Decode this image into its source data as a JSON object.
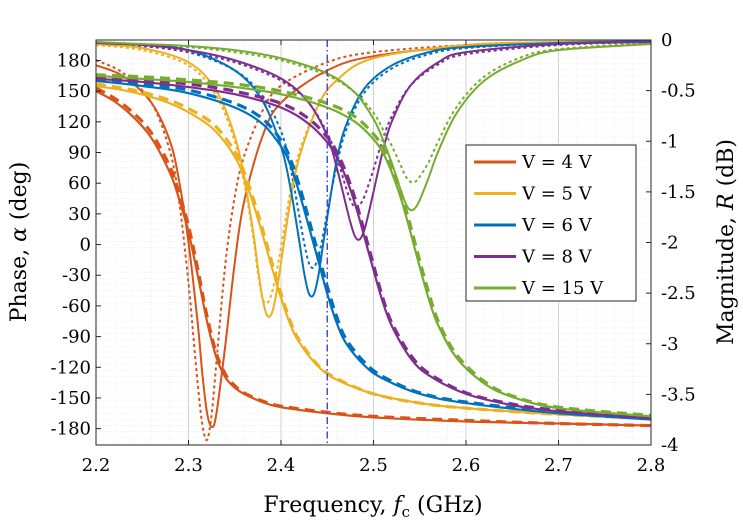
{
  "chart_data": {
    "type": "line",
    "title": "",
    "xlabel": "Frequency, f_c (GHz)",
    "xlabel_parts": {
      "pre": "Frequency, ",
      "var": "f",
      "sub": "c",
      "post": " (GHz)"
    },
    "ylabel_left": "Phase, α (deg)",
    "ylabel_left_parts": {
      "pre": "Phase, ",
      "var": "α",
      "post": " (deg)"
    },
    "ylabel_right": "Magnitude, R (dB)",
    "ylabel_right_parts": {
      "pre": "Magnitude, ",
      "var": "R",
      "post": " (dB)"
    },
    "xlim": [
      2.2,
      2.8
    ],
    "ylim_left": [
      -196,
      200
    ],
    "ylim_right": [
      -4,
      0
    ],
    "x_ticks": [
      "2.2",
      "2.3",
      "2.4",
      "2.5",
      "2.6",
      "2.7",
      "2.8"
    ],
    "y_left_ticks": [
      "180",
      "150",
      "120",
      "90",
      "60",
      "30",
      "0",
      "-30",
      "-60",
      "-90",
      "-120",
      "-150",
      "-180"
    ],
    "y_right_ticks": [
      "0",
      "-0.5",
      "-1",
      "-1.5",
      "-2",
      "-2.5",
      "-3",
      "-3.5",
      "-4"
    ],
    "grid": true,
    "minor_grid": true,
    "reference_line": {
      "x": 2.45,
      "style": "dash-dot",
      "color": "#4040e0"
    },
    "legend_position": "right-center",
    "line_styles": {
      "phase_measured": "solid thin",
      "phase_simulated": "dashed thick",
      "magnitude_measured": "solid thin",
      "magnitude_simulated": "dotted thin"
    },
    "series": [
      {
        "name": "V = 4 V",
        "color": "#d95319",
        "f0": 2.327,
        "phase_measured": {
          "x": [
            2.2,
            2.22,
            2.24,
            2.26,
            2.28,
            2.29,
            2.3,
            2.31,
            2.32,
            2.33,
            2.34,
            2.35,
            2.36,
            2.38,
            2.4,
            2.45,
            2.5,
            2.6,
            2.7,
            2.8
          ],
          "y": [
            150,
            140,
            125,
            104,
            70,
            44,
            12,
            -30,
            -75,
            -110,
            -130,
            -140,
            -146,
            -154,
            -159,
            -165,
            -169,
            -173,
            -175,
            -177
          ]
        },
        "phase_simulated": {
          "x": [
            2.2,
            2.22,
            2.24,
            2.26,
            2.28,
            2.29,
            2.3,
            2.31,
            2.32,
            2.33,
            2.34,
            2.35,
            2.36,
            2.38,
            2.4,
            2.45,
            2.5,
            2.6,
            2.7,
            2.8
          ],
          "y": [
            153,
            143,
            129,
            109,
            76,
            50,
            18,
            -24,
            -70,
            -106,
            -127,
            -138,
            -145,
            -153,
            -158,
            -164,
            -168,
            -172,
            -175,
            -177
          ]
        },
        "magnitude_measured": {
          "x": [
            2.2,
            2.23,
            2.26,
            2.28,
            2.29,
            2.3,
            2.31,
            2.315,
            2.32,
            2.325,
            2.33,
            2.34,
            2.35,
            2.36,
            2.38,
            2.4,
            2.45,
            2.5,
            2.6,
            2.7,
            2.8
          ],
          "y": [
            -0.25,
            -0.36,
            -0.62,
            -1.0,
            -1.4,
            -2.0,
            -2.8,
            -3.3,
            -3.68,
            -3.82,
            -3.7,
            -3.0,
            -2.2,
            -1.6,
            -0.95,
            -0.62,
            -0.3,
            -0.16,
            -0.06,
            -0.03,
            -0.02
          ]
        },
        "magnitude_simulated": {
          "x": [
            2.2,
            2.23,
            2.26,
            2.28,
            2.29,
            2.3,
            2.305,
            2.31,
            2.315,
            2.32,
            2.325,
            2.33,
            2.34,
            2.35,
            2.36,
            2.38,
            2.4,
            2.45,
            2.5,
            2.6,
            2.7,
            2.8
          ],
          "y": [
            -0.2,
            -0.33,
            -0.62,
            -1.1,
            -1.6,
            -2.4,
            -2.9,
            -3.4,
            -3.8,
            -3.95,
            -3.7,
            -3.2,
            -2.2,
            -1.55,
            -1.15,
            -0.7,
            -0.45,
            -0.22,
            -0.12,
            -0.05,
            -0.03,
            -0.02
          ]
        }
      },
      {
        "name": "V = 5 V",
        "color": "#edb120",
        "f0": 2.385,
        "phase_measured": {
          "x": [
            2.2,
            2.24,
            2.28,
            2.31,
            2.33,
            2.35,
            2.36,
            2.37,
            2.38,
            2.39,
            2.4,
            2.41,
            2.42,
            2.44,
            2.46,
            2.5,
            2.55,
            2.6,
            2.7,
            2.8
          ],
          "y": [
            155,
            149,
            138,
            124,
            110,
            86,
            66,
            40,
            10,
            -22,
            -52,
            -78,
            -96,
            -119,
            -132,
            -146,
            -155,
            -160,
            -166,
            -170
          ]
        },
        "phase_simulated": {
          "x": [
            2.2,
            2.24,
            2.28,
            2.31,
            2.33,
            2.35,
            2.36,
            2.37,
            2.38,
            2.39,
            2.4,
            2.41,
            2.42,
            2.44,
            2.46,
            2.5,
            2.55,
            2.6,
            2.7,
            2.8
          ],
          "y": [
            157,
            151,
            141,
            128,
            115,
            91,
            71,
            45,
            15,
            -17,
            -48,
            -75,
            -94,
            -118,
            -131,
            -146,
            -155,
            -160,
            -166,
            -170
          ]
        },
        "magnitude_measured": {
          "x": [
            2.2,
            2.25,
            2.3,
            2.33,
            2.35,
            2.36,
            2.37,
            2.375,
            2.38,
            2.385,
            2.39,
            2.395,
            2.4,
            2.41,
            2.42,
            2.44,
            2.46,
            2.5,
            2.6,
            2.7,
            2.8
          ],
          "y": [
            -0.04,
            -0.08,
            -0.22,
            -0.5,
            -0.95,
            -1.35,
            -1.9,
            -2.25,
            -2.55,
            -2.72,
            -2.7,
            -2.5,
            -2.2,
            -1.6,
            -1.15,
            -0.65,
            -0.4,
            -0.18,
            -0.05,
            -0.02,
            -0.01
          ]
        },
        "magnitude_simulated": {
          "x": [
            2.2,
            2.25,
            2.3,
            2.33,
            2.35,
            2.36,
            2.37,
            2.375,
            2.38,
            2.385,
            2.39,
            2.395,
            2.4,
            2.41,
            2.42,
            2.44,
            2.46,
            2.5,
            2.6,
            2.7,
            2.8
          ],
          "y": [
            -0.05,
            -0.1,
            -0.25,
            -0.55,
            -1.0,
            -1.4,
            -1.95,
            -2.3,
            -2.55,
            -2.6,
            -2.5,
            -2.3,
            -2.05,
            -1.5,
            -1.1,
            -0.65,
            -0.4,
            -0.18,
            -0.05,
            -0.02,
            -0.01
          ]
        }
      },
      {
        "name": "V = 6 V",
        "color": "#0072bd",
        "f0": 2.433,
        "phase_measured": {
          "x": [
            2.2,
            2.25,
            2.3,
            2.35,
            2.38,
            2.4,
            2.41,
            2.42,
            2.43,
            2.44,
            2.45,
            2.46,
            2.47,
            2.49,
            2.51,
            2.55,
            2.6,
            2.7,
            2.8
          ],
          "y": [
            160,
            155,
            148,
            134,
            118,
            96,
            78,
            50,
            18,
            -15,
            -48,
            -76,
            -96,
            -118,
            -131,
            -146,
            -155,
            -165,
            -171
          ]
        },
        "phase_simulated": {
          "x": [
            2.2,
            2.25,
            2.3,
            2.35,
            2.38,
            2.4,
            2.41,
            2.42,
            2.43,
            2.44,
            2.45,
            2.46,
            2.47,
            2.49,
            2.51,
            2.55,
            2.6,
            2.7,
            2.8
          ],
          "y": [
            162,
            157,
            151,
            138,
            123,
            102,
            84,
            57,
            25,
            -8,
            -41,
            -70,
            -92,
            -115,
            -129,
            -145,
            -154,
            -164,
            -170
          ]
        },
        "magnitude_measured": {
          "x": [
            2.2,
            2.25,
            2.3,
            2.35,
            2.38,
            2.4,
            2.41,
            2.42,
            2.425,
            2.43,
            2.435,
            2.44,
            2.445,
            2.45,
            2.46,
            2.47,
            2.49,
            2.52,
            2.56,
            2.6,
            2.7,
            2.8
          ],
          "y": [
            -0.02,
            -0.05,
            -0.1,
            -0.3,
            -0.6,
            -1.05,
            -1.45,
            -2.0,
            -2.3,
            -2.5,
            -2.52,
            -2.35,
            -2.05,
            -1.75,
            -1.2,
            -0.85,
            -0.48,
            -0.25,
            -0.12,
            -0.07,
            -0.03,
            -0.01
          ]
        },
        "magnitude_simulated": {
          "x": [
            2.2,
            2.25,
            2.3,
            2.35,
            2.38,
            2.4,
            2.41,
            2.42,
            2.425,
            2.43,
            2.435,
            2.44,
            2.445,
            2.45,
            2.46,
            2.47,
            2.49,
            2.52,
            2.56,
            2.6,
            2.7,
            2.8
          ],
          "y": [
            -0.03,
            -0.06,
            -0.12,
            -0.3,
            -0.55,
            -0.9,
            -1.25,
            -1.75,
            -2.0,
            -2.2,
            -2.25,
            -2.15,
            -1.95,
            -1.7,
            -1.25,
            -0.9,
            -0.52,
            -0.28,
            -0.14,
            -0.08,
            -0.03,
            -0.02
          ]
        }
      },
      {
        "name": "V = 8 V",
        "color": "#7e2f8e",
        "f0": 2.485,
        "phase_measured": {
          "x": [
            2.2,
            2.25,
            2.3,
            2.35,
            2.4,
            2.43,
            2.45,
            2.46,
            2.47,
            2.48,
            2.49,
            2.5,
            2.51,
            2.52,
            2.54,
            2.56,
            2.6,
            2.65,
            2.7,
            2.8
          ],
          "y": [
            162,
            159,
            154,
            147,
            134,
            118,
            100,
            86,
            66,
            40,
            8,
            -25,
            -56,
            -80,
            -111,
            -128,
            -146,
            -157,
            -163,
            -170
          ]
        },
        "phase_simulated": {
          "x": [
            2.2,
            2.25,
            2.3,
            2.35,
            2.4,
            2.43,
            2.45,
            2.46,
            2.47,
            2.48,
            2.49,
            2.5,
            2.51,
            2.52,
            2.54,
            2.56,
            2.6,
            2.65,
            2.7,
            2.8
          ],
          "y": [
            164,
            161,
            157,
            150,
            138,
            123,
            105,
            91,
            71,
            45,
            13,
            -20,
            -52,
            -77,
            -108,
            -126,
            -145,
            -156,
            -162,
            -169
          ]
        },
        "magnitude_measured": {
          "x": [
            2.2,
            2.25,
            2.3,
            2.35,
            2.4,
            2.43,
            2.45,
            2.46,
            2.47,
            2.475,
            2.48,
            2.485,
            2.49,
            2.495,
            2.5,
            2.51,
            2.52,
            2.54,
            2.57,
            2.6,
            2.7,
            2.8
          ],
          "y": [
            -0.03,
            -0.05,
            -0.1,
            -0.2,
            -0.38,
            -0.62,
            -0.95,
            -1.25,
            -1.62,
            -1.8,
            -1.94,
            -1.97,
            -1.88,
            -1.7,
            -1.5,
            -1.1,
            -0.8,
            -0.45,
            -0.22,
            -0.12,
            -0.04,
            -0.02
          ]
        },
        "magnitude_simulated": {
          "x": [
            2.2,
            2.25,
            2.3,
            2.35,
            2.4,
            2.43,
            2.45,
            2.46,
            2.47,
            2.475,
            2.48,
            2.485,
            2.49,
            2.495,
            2.5,
            2.51,
            2.52,
            2.54,
            2.57,
            2.6,
            2.7,
            2.8
          ],
          "y": [
            -0.04,
            -0.06,
            -0.12,
            -0.22,
            -0.4,
            -0.62,
            -0.92,
            -1.15,
            -1.45,
            -1.58,
            -1.65,
            -1.63,
            -1.55,
            -1.42,
            -1.28,
            -0.98,
            -0.75,
            -0.45,
            -0.24,
            -0.14,
            -0.05,
            -0.02
          ]
        }
      },
      {
        "name": "V = 15 V",
        "color": "#77ac30",
        "f0": 2.54,
        "phase_measured": {
          "x": [
            2.2,
            2.25,
            2.3,
            2.35,
            2.4,
            2.45,
            2.48,
            2.5,
            2.51,
            2.52,
            2.53,
            2.54,
            2.55,
            2.56,
            2.57,
            2.59,
            2.62,
            2.65,
            2.7,
            2.8
          ],
          "y": [
            165,
            162,
            159,
            154,
            147,
            134,
            120,
            103,
            90,
            70,
            44,
            12,
            -22,
            -54,
            -79,
            -111,
            -136,
            -149,
            -160,
            -168
          ]
        },
        "phase_simulated": {
          "x": [
            2.2,
            2.25,
            2.3,
            2.35,
            2.4,
            2.45,
            2.48,
            2.5,
            2.51,
            2.52,
            2.53,
            2.54,
            2.55,
            2.56,
            2.57,
            2.59,
            2.62,
            2.65,
            2.7,
            2.8
          ],
          "y": [
            166,
            164,
            161,
            157,
            150,
            138,
            125,
            108,
            95,
            76,
            50,
            18,
            -16,
            -48,
            -75,
            -108,
            -134,
            -148,
            -159,
            -167
          ]
        },
        "magnitude_measured": {
          "x": [
            2.2,
            2.25,
            2.3,
            2.35,
            2.4,
            2.45,
            2.48,
            2.5,
            2.51,
            2.52,
            2.53,
            2.535,
            2.54,
            2.545,
            2.55,
            2.56,
            2.57,
            2.59,
            2.62,
            2.66,
            2.7,
            2.8
          ],
          "y": [
            -0.02,
            -0.04,
            -0.06,
            -0.1,
            -0.18,
            -0.33,
            -0.52,
            -0.78,
            -0.98,
            -1.22,
            -1.5,
            -1.62,
            -1.68,
            -1.66,
            -1.58,
            -1.35,
            -1.1,
            -0.72,
            -0.4,
            -0.2,
            -0.1,
            -0.04
          ]
        },
        "magnitude_simulated": {
          "x": [
            2.2,
            2.25,
            2.3,
            2.35,
            2.4,
            2.45,
            2.48,
            2.5,
            2.51,
            2.52,
            2.53,
            2.535,
            2.54,
            2.545,
            2.55,
            2.56,
            2.57,
            2.59,
            2.62,
            2.66,
            2.7,
            2.8
          ],
          "y": [
            -0.03,
            -0.05,
            -0.07,
            -0.12,
            -0.2,
            -0.35,
            -0.52,
            -0.72,
            -0.88,
            -1.05,
            -1.25,
            -1.35,
            -1.4,
            -1.4,
            -1.35,
            -1.2,
            -1.0,
            -0.66,
            -0.36,
            -0.17,
            -0.09,
            -0.03
          ]
        }
      }
    ]
  }
}
